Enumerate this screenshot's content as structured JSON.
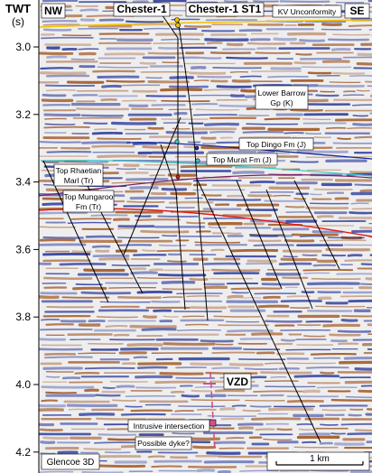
{
  "axis": {
    "title_line1": "TWT",
    "title_line2": "(s)",
    "ticks": [
      "3.0",
      "3.2",
      "3.4",
      "3.6",
      "3.8",
      "4.0",
      "4.2"
    ]
  },
  "orientation": {
    "left": "NW",
    "right": "SE"
  },
  "wells": {
    "well1": "Chester-1",
    "well2": "Chester-1 ST1"
  },
  "horizons": {
    "kv_unconformity": "KV Unconformity",
    "lower_barrow_line1": "Lower Barrow",
    "lower_barrow_line2": "Gp (K)",
    "top_dingo": "Top Dingo Fm (J)",
    "top_murat": "Top Murat Fm (J)",
    "top_rhaetian_line1": "Top Rhaetian",
    "top_rhaetian_line2": "Marl (Tr)",
    "top_mungaroo_line1": "Top Mungaroo",
    "top_mungaroo_line2": "Fm (Tr)"
  },
  "annotations": {
    "vzd": "VZD",
    "intrusive": "Intrusive intersection",
    "dyke": "Possible dyke?"
  },
  "survey": "Glencoe 3D",
  "scale_bar": "1 km",
  "colors": {
    "kv_unconformity": "#f2c200",
    "top_dingo": "#1a2a9a",
    "top_murat": "#40c8c8",
    "top_mungaroo": "#e01818",
    "triassic_horizon": "#7a2060",
    "vzd_marker": "#d0508a",
    "seismic_peak": "#2a3a9c",
    "seismic_trough": "#a0541c"
  }
}
